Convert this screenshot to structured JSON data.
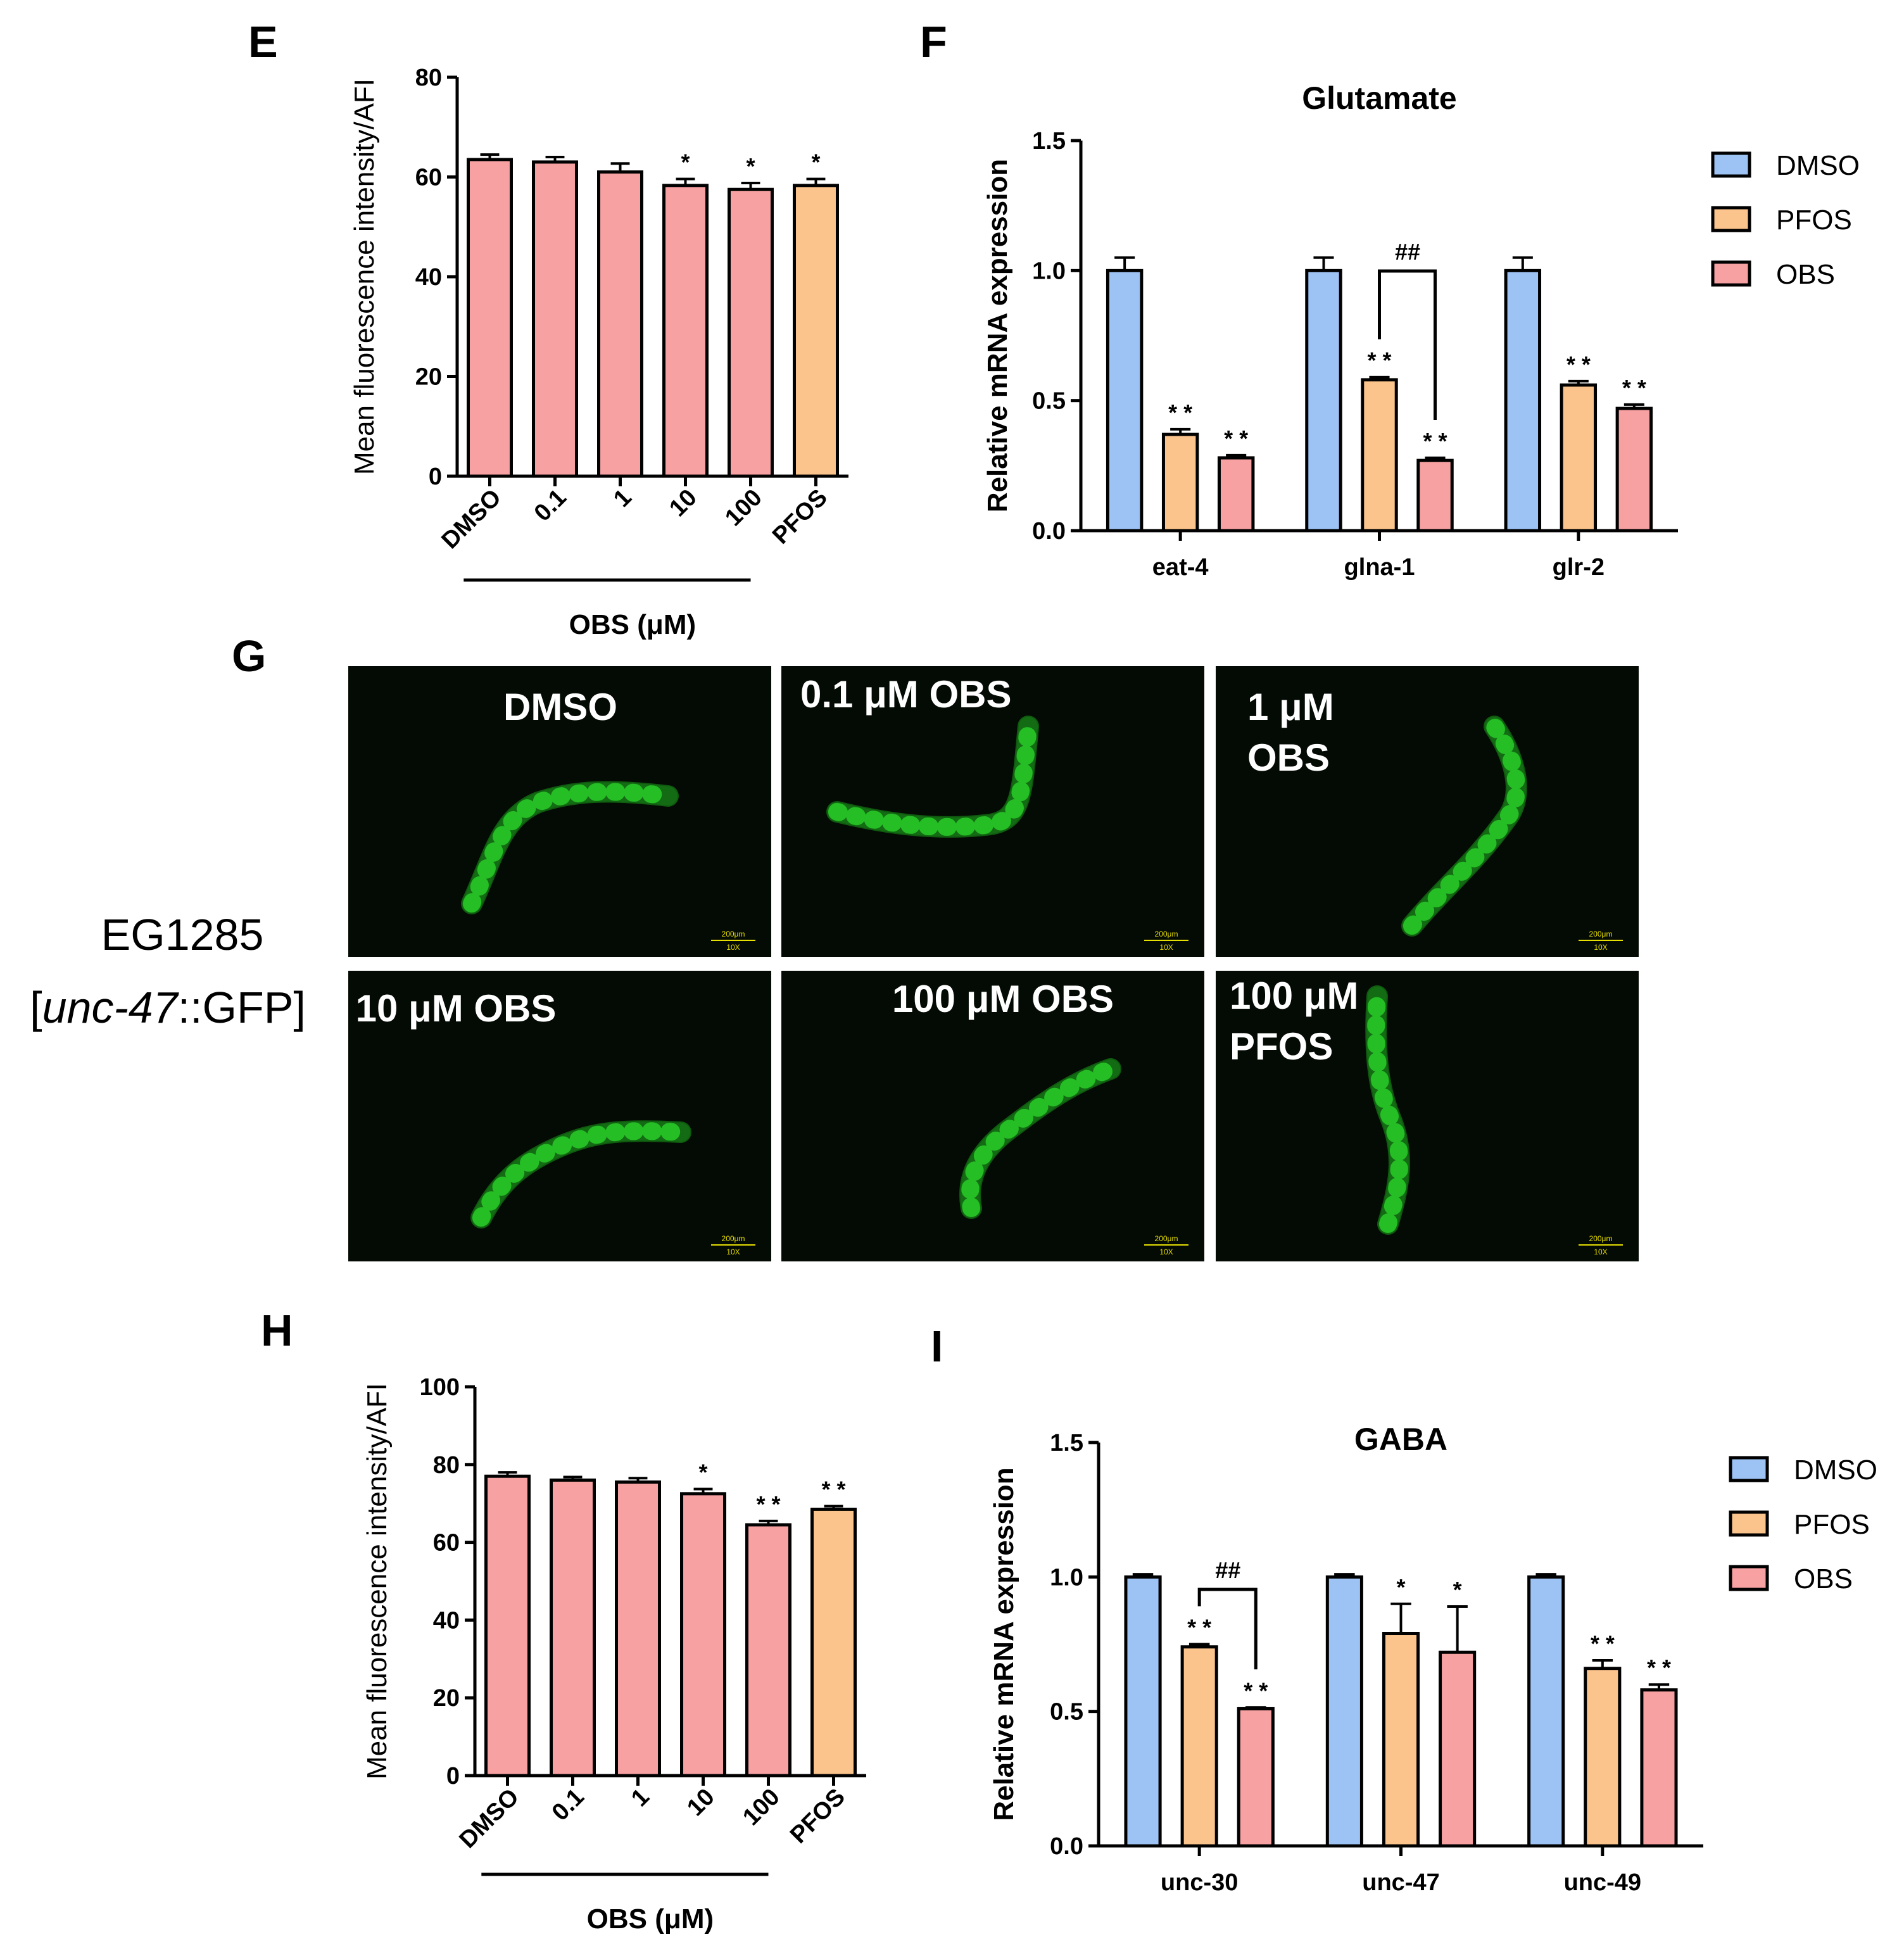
{
  "panels": {
    "E": "E",
    "F": "F",
    "G": "G",
    "H": "H",
    "I": "I"
  },
  "colors": {
    "dmso": "#9DC3F5",
    "pfos": "#FBC48C",
    "obs": "#F7A1A3",
    "worm": "#2ee62e",
    "micro_bg": "#040a04"
  },
  "chart_data": [
    {
      "panel": "E",
      "type": "bar",
      "ylabel": "Mean fluorescence intensity/AFI",
      "xlabel": "OBS (μM)",
      "categories": [
        "DMSO",
        "0.1",
        "1",
        "10",
        "100",
        "PFOS"
      ],
      "values": [
        63.5,
        63.0,
        61.0,
        58.3,
        57.5,
        58.3
      ],
      "errors": [
        1.0,
        1.0,
        1.7,
        1.3,
        1.3,
        1.3
      ],
      "bar_colors": [
        "obs",
        "obs",
        "obs",
        "obs",
        "obs",
        "pfos"
      ],
      "significance": [
        "",
        "",
        "",
        "*",
        "*",
        "*"
      ],
      "ylim": [
        0,
        80
      ],
      "yticks": [
        "0",
        "20",
        "40",
        "60",
        "80"
      ]
    },
    {
      "panel": "F",
      "type": "bar",
      "title": "Glutamate",
      "ylabel": "Relative mRNA expression",
      "categories": [
        "eat-4",
        "glna-1",
        "glr-2"
      ],
      "series": [
        {
          "name": "DMSO",
          "values": [
            1.0,
            1.0,
            1.0
          ],
          "errors": [
            0.05,
            0.05,
            0.05
          ],
          "sig": [
            "",
            "",
            ""
          ]
        },
        {
          "name": "PFOS",
          "values": [
            0.37,
            0.58,
            0.56
          ],
          "errors": [
            0.02,
            0.01,
            0.015
          ],
          "sig": [
            "* *",
            "* *",
            "* *"
          ]
        },
        {
          "name": "OBS",
          "values": [
            0.28,
            0.27,
            0.47
          ],
          "errors": [
            0.01,
            0.01,
            0.015
          ],
          "sig": [
            "* *",
            "* *",
            "* *"
          ]
        }
      ],
      "bracket": {
        "category": "glna-1",
        "label": "##"
      },
      "ylim": [
        0,
        1.5
      ],
      "yticks": [
        "0.0",
        "0.5",
        "1.0",
        "1.5"
      ]
    },
    {
      "panel": "H",
      "type": "bar",
      "ylabel": "Mean fluorescence intensity/AFI",
      "xlabel": "OBS (μM)",
      "categories": [
        "DMSO",
        "0.1",
        "1",
        "10",
        "100",
        "PFOS"
      ],
      "values": [
        77.0,
        76.0,
        75.5,
        72.5,
        64.5,
        68.5
      ],
      "errors": [
        1.0,
        0.8,
        1.0,
        1.2,
        1.0,
        0.8
      ],
      "bar_colors": [
        "obs",
        "obs",
        "obs",
        "obs",
        "obs",
        "pfos"
      ],
      "significance": [
        "",
        "",
        "",
        "*",
        "* *",
        "* *"
      ],
      "ylim": [
        0,
        100
      ],
      "yticks": [
        "0",
        "20",
        "40",
        "60",
        "80",
        "100"
      ]
    },
    {
      "panel": "I",
      "type": "bar",
      "title": "GABA",
      "ylabel": "Relative mRNA expression",
      "categories": [
        "unc-30",
        "unc-47",
        "unc-49"
      ],
      "series": [
        {
          "name": "DMSO",
          "values": [
            1.0,
            1.0,
            1.0
          ],
          "errors": [
            0.01,
            0.01,
            0.01
          ],
          "sig": [
            "",
            "",
            ""
          ]
        },
        {
          "name": "PFOS",
          "values": [
            0.74,
            0.79,
            0.66
          ],
          "errors": [
            0.01,
            0.11,
            0.03
          ],
          "sig": [
            "* *",
            "*",
            "* *"
          ]
        },
        {
          "name": "OBS",
          "values": [
            0.51,
            0.72,
            0.58
          ],
          "errors": [
            0.005,
            0.17,
            0.02
          ],
          "sig": [
            "* *",
            "*",
            "* *"
          ]
        }
      ],
      "bracket": {
        "category": "unc-30",
        "label": "##"
      },
      "ylim": [
        0,
        1.5
      ],
      "yticks": [
        "0.0",
        "0.5",
        "1.0",
        "1.5"
      ]
    }
  ],
  "micrographs": {
    "strain_line1": "EG1285",
    "strain_prefix": "[",
    "strain_gene": "unc-47",
    "strain_suffix": "::GFP]",
    "scale_text": "200μm",
    "mag_text": "10X",
    "images": [
      {
        "label1": "DMSO",
        "label2": ""
      },
      {
        "label1": "0.1 μM OBS",
        "label2": ""
      },
      {
        "label1": "1 μM",
        "label2": "OBS"
      },
      {
        "label1": "10 μM OBS",
        "label2": ""
      },
      {
        "label1": "100 μM OBS",
        "label2": ""
      },
      {
        "label1": "100 μM",
        "label2": "PFOS"
      }
    ]
  }
}
